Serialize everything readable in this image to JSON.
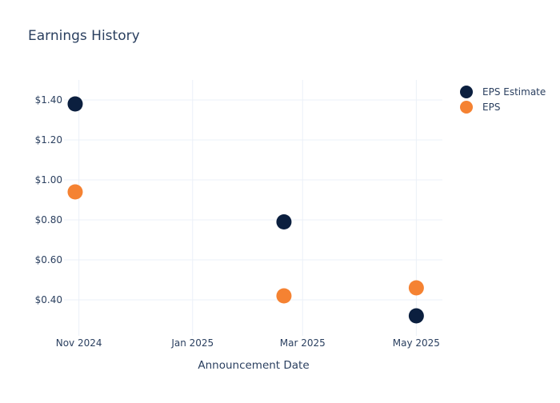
{
  "chart_data": {
    "type": "scatter",
    "title": "Earnings History",
    "xlabel": "Announcement Date",
    "ylabel": "",
    "x_ticks": [
      {
        "date": "2024-11-01",
        "label": "Nov 2024"
      },
      {
        "date": "2025-01-01",
        "label": "Jan 2025"
      },
      {
        "date": "2025-03-01",
        "label": "Mar 2025"
      },
      {
        "date": "2025-05-01",
        "label": "May 2025"
      }
    ],
    "y_ticks": [
      {
        "value": 0.4,
        "label": "$0.40"
      },
      {
        "value": 0.6,
        "label": "$0.60"
      },
      {
        "value": 0.8,
        "label": "$0.80"
      },
      {
        "value": 1.0,
        "label": "$1.00"
      },
      {
        "value": 1.2,
        "label": "$1.20"
      },
      {
        "value": 1.4,
        "label": "$1.40"
      }
    ],
    "xlim": [
      "2024-10-24",
      "2025-05-15"
    ],
    "ylim": [
      0.22,
      1.5
    ],
    "grid": true,
    "legend_position": "top-right",
    "series": [
      {
        "name": "EPS Estimate",
        "color": "#0b1f3f",
        "points": [
          {
            "x": "2024-10-30",
            "y": 1.38
          },
          {
            "x": "2025-02-19",
            "y": 0.79
          },
          {
            "x": "2025-05-01",
            "y": 0.32
          }
        ]
      },
      {
        "name": "EPS",
        "color": "#f58232",
        "points": [
          {
            "x": "2024-10-30",
            "y": 0.94
          },
          {
            "x": "2025-02-19",
            "y": 0.42
          },
          {
            "x": "2025-05-01",
            "y": 0.46
          }
        ]
      }
    ]
  }
}
